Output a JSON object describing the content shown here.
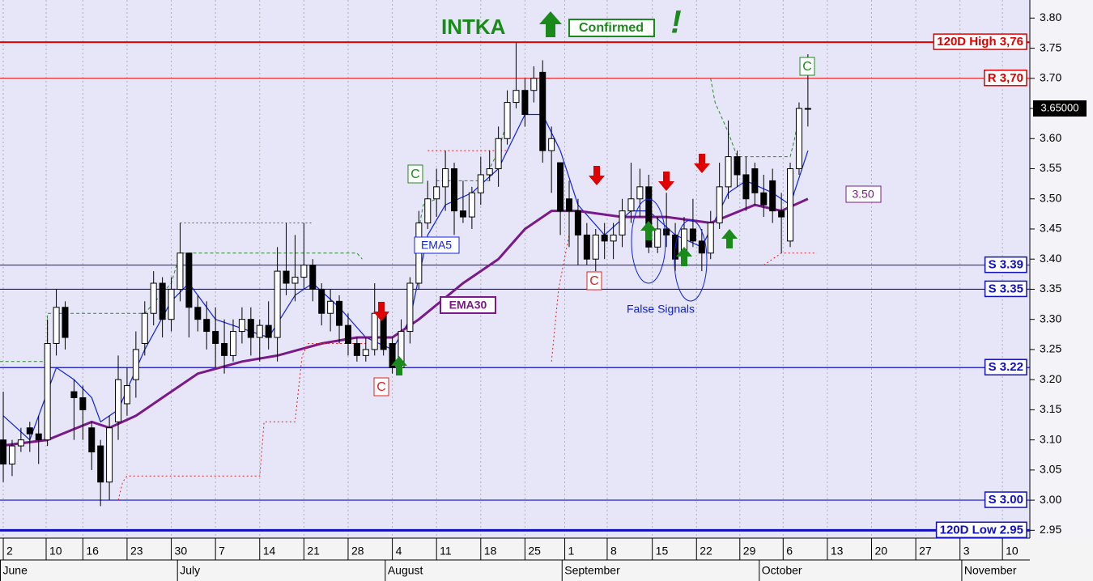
{
  "chart_data": {
    "type": "candlestick",
    "title": "INTKA",
    "badge": "Confirmed",
    "exclaim": "!",
    "candle_colors": {
      "up": "#ffffff",
      "down": "#000000",
      "wick": "#000000"
    },
    "candles": [
      [
        3.1,
        3.18,
        3.03,
        3.06
      ],
      [
        3.06,
        3.1,
        3.04,
        3.09
      ],
      [
        3.09,
        3.12,
        3.08,
        3.1
      ],
      [
        3.12,
        3.13,
        3.08,
        3.11
      ],
      [
        3.11,
        3.14,
        3.06,
        3.1
      ],
      [
        3.1,
        3.3,
        3.09,
        3.26
      ],
      [
        3.26,
        3.35,
        3.24,
        3.32
      ],
      [
        3.32,
        3.33,
        3.25,
        3.27
      ],
      [
        3.18,
        3.2,
        3.1,
        3.17
      ],
      [
        3.17,
        3.19,
        3.1,
        3.15
      ],
      [
        3.12,
        3.13,
        3.05,
        3.08
      ],
      [
        3.09,
        3.1,
        2.99,
        3.03
      ],
      [
        3.03,
        3.14,
        3.0,
        3.12
      ],
      [
        3.13,
        3.24,
        3.1,
        3.2
      ],
      [
        3.16,
        3.22,
        3.14,
        3.19
      ],
      [
        3.2,
        3.28,
        3.17,
        3.25
      ],
      [
        3.26,
        3.33,
        3.24,
        3.31
      ],
      [
        3.31,
        3.38,
        3.29,
        3.36
      ],
      [
        3.36,
        3.37,
        3.27,
        3.3
      ],
      [
        3.3,
        3.37,
        3.28,
        3.35
      ],
      [
        3.35,
        3.46,
        3.33,
        3.41
      ],
      [
        3.41,
        3.41,
        3.27,
        3.32
      ],
      [
        3.32,
        3.34,
        3.28,
        3.3
      ],
      [
        3.3,
        3.33,
        3.25,
        3.28
      ],
      [
        3.28,
        3.32,
        3.22,
        3.26
      ],
      [
        3.26,
        3.3,
        3.21,
        3.24
      ],
      [
        3.24,
        3.3,
        3.23,
        3.28
      ],
      [
        3.28,
        3.32,
        3.26,
        3.3
      ],
      [
        3.3,
        3.32,
        3.24,
        3.27
      ],
      [
        3.27,
        3.3,
        3.23,
        3.29
      ],
      [
        3.29,
        3.33,
        3.25,
        3.27
      ],
      [
        3.27,
        3.42,
        3.23,
        3.38
      ],
      [
        3.38,
        3.46,
        3.34,
        3.36
      ],
      [
        3.36,
        3.44,
        3.33,
        3.37
      ],
      [
        3.37,
        3.46,
        3.35,
        3.39
      ],
      [
        3.39,
        3.4,
        3.33,
        3.35
      ],
      [
        3.35,
        3.36,
        3.29,
        3.31
      ],
      [
        3.31,
        3.35,
        3.28,
        3.33
      ],
      [
        3.33,
        3.34,
        3.26,
        3.29
      ],
      [
        3.29,
        3.31,
        3.24,
        3.26
      ],
      [
        3.26,
        3.27,
        3.23,
        3.24
      ],
      [
        3.24,
        3.27,
        3.23,
        3.25
      ],
      [
        3.25,
        3.36,
        3.24,
        3.31
      ],
      [
        3.31,
        3.32,
        3.24,
        3.25
      ],
      [
        3.26,
        3.27,
        3.21,
        3.22
      ],
      [
        3.22,
        3.3,
        3.21,
        3.28
      ],
      [
        3.28,
        3.37,
        3.26,
        3.36
      ],
      [
        3.36,
        3.48,
        3.35,
        3.46
      ],
      [
        3.46,
        3.53,
        3.45,
        3.5
      ],
      [
        3.5,
        3.55,
        3.47,
        3.52
      ],
      [
        3.52,
        3.58,
        3.48,
        3.55
      ],
      [
        3.55,
        3.56,
        3.44,
        3.48
      ],
      [
        3.48,
        3.53,
        3.46,
        3.47
      ],
      [
        3.47,
        3.52,
        3.45,
        3.51
      ],
      [
        3.51,
        3.57,
        3.49,
        3.54
      ],
      [
        3.54,
        3.58,
        3.53,
        3.55
      ],
      [
        3.55,
        3.62,
        3.52,
        3.6
      ],
      [
        3.6,
        3.68,
        3.59,
        3.66
      ],
      [
        3.66,
        3.76,
        3.65,
        3.68
      ],
      [
        3.68,
        3.7,
        3.62,
        3.64
      ],
      [
        3.68,
        3.72,
        3.66,
        3.7
      ],
      [
        3.71,
        3.73,
        3.56,
        3.58
      ],
      [
        3.58,
        3.62,
        3.51,
        3.6
      ],
      [
        3.56,
        3.56,
        3.44,
        3.48
      ],
      [
        3.5,
        3.53,
        3.42,
        3.48
      ],
      [
        3.48,
        3.5,
        3.39,
        3.44
      ],
      [
        3.44,
        3.46,
        3.39,
        3.4
      ],
      [
        3.4,
        3.45,
        3.38,
        3.44
      ],
      [
        3.44,
        3.46,
        3.4,
        3.43
      ],
      [
        3.43,
        3.46,
        3.4,
        3.44
      ],
      [
        3.44,
        3.5,
        3.42,
        3.48
      ],
      [
        3.48,
        3.56,
        3.46,
        3.5
      ],
      [
        3.5,
        3.55,
        3.47,
        3.52
      ],
      [
        3.52,
        3.54,
        3.41,
        3.42
      ],
      [
        3.42,
        3.47,
        3.41,
        3.45
      ],
      [
        3.45,
        3.51,
        3.42,
        3.44
      ],
      [
        3.44,
        3.46,
        3.38,
        3.4
      ],
      [
        3.4,
        3.47,
        3.39,
        3.45
      ],
      [
        3.45,
        3.5,
        3.42,
        3.43
      ],
      [
        3.43,
        3.45,
        3.38,
        3.41
      ],
      [
        3.41,
        3.48,
        3.4,
        3.46
      ],
      [
        3.46,
        3.56,
        3.45,
        3.52
      ],
      [
        3.52,
        3.63,
        3.5,
        3.57
      ],
      [
        3.57,
        3.58,
        3.52,
        3.54
      ],
      [
        3.54,
        3.57,
        3.48,
        3.5
      ],
      [
        3.55,
        3.56,
        3.49,
        3.51
      ],
      [
        3.51,
        3.54,
        3.47,
        3.49
      ],
      [
        3.53,
        3.55,
        3.46,
        3.48
      ],
      [
        3.48,
        3.51,
        3.41,
        3.47
      ],
      [
        3.43,
        3.56,
        3.42,
        3.55
      ],
      [
        3.55,
        3.66,
        3.54,
        3.65
      ],
      [
        3.65,
        3.74,
        3.62,
        3.65
      ]
    ],
    "lines": [
      {
        "name": "EMA5",
        "color": "#1020e0",
        "width": 1.2,
        "dash": "",
        "x": [
          0,
          3,
          6,
          8,
          10,
          11,
          13,
          16,
          19,
          21,
          24,
          28,
          30,
          33,
          35,
          38,
          41,
          44,
          46,
          48,
          50,
          53,
          56,
          59,
          61,
          63,
          65,
          68,
          71,
          73,
          76,
          79,
          82,
          84,
          87,
          89,
          91
        ],
        "values": [
          3.14,
          3.1,
          3.22,
          3.2,
          3.17,
          3.13,
          3.15,
          3.25,
          3.33,
          3.36,
          3.3,
          3.28,
          3.27,
          3.34,
          3.36,
          3.32,
          3.27,
          3.25,
          3.3,
          3.44,
          3.49,
          3.51,
          3.55,
          3.64,
          3.64,
          3.58,
          3.49,
          3.44,
          3.48,
          3.48,
          3.44,
          3.42,
          3.51,
          3.53,
          3.51,
          3.49,
          3.58
        ]
      },
      {
        "name": "EMA30",
        "color": "#7a1a8a",
        "width": 3,
        "dash": "",
        "x": [
          -0.4,
          5,
          10,
          12,
          15,
          19,
          22,
          27,
          31,
          36,
          40,
          44,
          47,
          52,
          56,
          59,
          62,
          65,
          70,
          75,
          80,
          85,
          88,
          91
        ],
        "values": [
          3.09,
          3.1,
          3.13,
          3.12,
          3.14,
          3.18,
          3.21,
          3.23,
          3.24,
          3.26,
          3.27,
          3.27,
          3.3,
          3.36,
          3.4,
          3.45,
          3.48,
          3.48,
          3.47,
          3.47,
          3.46,
          3.49,
          3.48,
          3.5
        ]
      },
      {
        "name": "Resistance stop",
        "color": "#2a8a2a",
        "width": 1,
        "dash": "4 3",
        "x": [
          -0.4,
          5,
          5,
          16,
          19,
          20,
          40,
          40.6,
          null,
          47,
          47.5,
          49,
          49,
          55,
          55,
          56,
          57,
          null,
          80,
          80.5,
          82,
          82,
          83,
          89,
          89.5,
          90
        ],
        "values": [
          3.23,
          3.23,
          3.31,
          3.31,
          3.36,
          3.41,
          3.41,
          3.4,
          null,
          3.45,
          3.49,
          3.5,
          3.53,
          3.53,
          3.55,
          3.58,
          3.63,
          null,
          3.7,
          3.66,
          3.61,
          3.61,
          3.57,
          3.57,
          3.6,
          3.64
        ]
      },
      {
        "name": "Support stop",
        "color": "#e02020",
        "width": 1,
        "dash": "2 3",
        "x": [
          13,
          13.5,
          14,
          29,
          29.5,
          33,
          33.8,
          34.5,
          41,
          null,
          62,
          62.8,
          64,
          null,
          86,
          87,
          88,
          92,
          null,
          20,
          35,
          null,
          48,
          57
        ],
        "values": [
          3.0,
          3.03,
          3.04,
          3.04,
          3.13,
          3.13,
          3.24,
          3.26,
          3.26,
          null,
          3.23,
          3.35,
          3.44,
          null,
          3.39,
          3.4,
          3.41,
          3.41,
          null,
          3.46,
          3.46,
          null,
          3.58,
          3.58
        ]
      }
    ],
    "levels": [
      {
        "label": "120D High 3,76",
        "value": 3.76,
        "color": "#e00000",
        "width": 2
      },
      {
        "label": "R 3,70",
        "value": 3.7,
        "color": "#e00000",
        "width": 1
      },
      {
        "label": "S 3.39",
        "value": 3.39,
        "color": "#1010c0",
        "width": 1
      },
      {
        "label": "S 3.35",
        "value": 3.35,
        "color": "#1010c0",
        "width": 1.2
      },
      {
        "label": "S 3.22",
        "value": 3.22,
        "color": "#1010c0",
        "width": 1.2
      },
      {
        "label": "S 3.00",
        "value": 3.0,
        "color": "#1010c0",
        "width": 1.2
      },
      {
        "label": "120D Low 2.95",
        "value": 2.95,
        "color": "#1010c0",
        "width": 3
      }
    ],
    "last_price": {
      "value": 3.65,
      "label": "3.65000"
    },
    "annotations": {
      "c": "C",
      "ema5": "EMA5",
      "ema30": "EMA30",
      "level": "3.50",
      "false_signals": "False Signals"
    },
    "ylim": [
      2.937,
      3.83
    ],
    "yticks": [
      2.95,
      {
        "value": 3.0,
        "label": "3.00"
      },
      3.05,
      {
        "value": 3.1,
        "label": "3.10"
      },
      3.15,
      {
        "value": 3.2,
        "label": "3.20"
      },
      3.25,
      {
        "value": 3.3,
        "label": "3.30"
      },
      3.35,
      {
        "value": 3.4,
        "label": "3.40"
      },
      3.45,
      {
        "value": 3.5,
        "label": "3.50"
      },
      3.55,
      {
        "value": 3.6,
        "label": "3.60"
      },
      3.65,
      {
        "value": 3.7,
        "label": "3.70"
      },
      3.75,
      {
        "value": 3.8,
        "label": "3.80"
      }
    ],
    "xlim": [
      -0.37,
      116.1
    ],
    "xticks": [
      {
        "value": 0,
        "label": "2"
      },
      {
        "value": 4.85,
        "label": "10"
      },
      {
        "value": 9,
        "label": "16"
      },
      {
        "value": 14,
        "label": "23"
      },
      {
        "value": 19,
        "label": "30"
      },
      {
        "value": 24,
        "label": "7"
      },
      {
        "value": 29,
        "label": "14"
      },
      {
        "value": 34,
        "label": "21"
      },
      {
        "value": 39,
        "label": "28"
      },
      {
        "value": 44,
        "label": "4"
      },
      {
        "value": 49,
        "label": "11"
      },
      {
        "value": 54,
        "label": "18"
      },
      {
        "value": 59,
        "label": "25"
      },
      {
        "value": 63.5,
        "label": "1"
      },
      {
        "value": 68.3,
        "label": "8"
      },
      {
        "value": 73.4,
        "label": "15"
      },
      {
        "value": 78.4,
        "label": "22"
      },
      {
        "value": 83.3,
        "label": "29"
      },
      {
        "value": 88.2,
        "label": "6"
      },
      {
        "value": 93.2,
        "label": "13"
      },
      {
        "value": 98.2,
        "label": "20"
      },
      {
        "value": 103.2,
        "label": "27"
      },
      {
        "value": 108.2,
        "label": "3"
      },
      {
        "value": 113,
        "label": "10"
      }
    ],
    "months": [
      {
        "value": -0.37,
        "label": "June"
      },
      {
        "value": 19.7,
        "label": "July"
      },
      {
        "value": 43.2,
        "label": "August"
      },
      {
        "value": 63.2,
        "label": "September"
      },
      {
        "value": 85.5,
        "label": "October"
      },
      {
        "value": 108.4,
        "label": "November"
      }
    ],
    "grid": true
  }
}
